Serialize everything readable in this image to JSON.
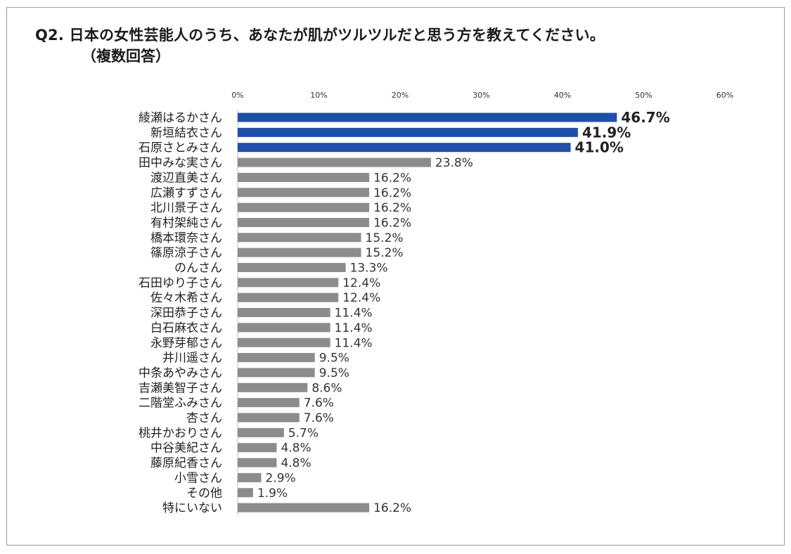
{
  "chart_data": {
    "type": "bar",
    "orientation": "horizontal",
    "title": "Q2. 日本の女性芸能人のうち、あなたが肌がツルツルだと思う方を教えてください。",
    "subtitle": "（複数回答）",
    "xlim": [
      0,
      60
    ],
    "x_ticks": [
      "0%",
      "10%",
      "20%",
      "30%",
      "40%",
      "50%",
      "60%"
    ],
    "grid": false,
    "highlight_color": "#1f4fa8",
    "bar_color": "#8c8c8c",
    "highlight_count": 3,
    "categories": [
      "綾瀬はるかさん",
      "新垣結衣さん",
      "石原さとみさん",
      "田中みな実さん",
      "渡辺直美さん",
      "広瀬すずさん",
      "北川景子さん",
      "有村架純さん",
      "橋本環奈さん",
      "篠原涼子さん",
      "のんさん",
      "石田ゆり子さん",
      "佐々木希さん",
      "深田恭子さん",
      "白石麻衣さん",
      "永野芽郁さん",
      "井川遥さん",
      "中条あやみさん",
      "吉瀬美智子さん",
      "二階堂ふみさん",
      "杏さん",
      "桃井かおりさん",
      "中谷美紀さん",
      "藤原紀香さん",
      "小雪さん",
      "その他",
      "特にいない"
    ],
    "values": [
      46.7,
      41.9,
      41.0,
      23.8,
      16.2,
      16.2,
      16.2,
      16.2,
      15.2,
      15.2,
      13.3,
      12.4,
      12.4,
      11.4,
      11.4,
      11.4,
      9.5,
      9.5,
      8.6,
      7.6,
      7.6,
      5.7,
      4.8,
      4.8,
      2.9,
      1.9,
      16.2
    ],
    "value_labels": [
      "46.7%",
      "41.9%",
      "41.0%",
      "23.8%",
      "16.2%",
      "16.2%",
      "16.2%",
      "16.2%",
      "15.2%",
      "15.2%",
      "13.3%",
      "12.4%",
      "12.4%",
      "11.4%",
      "11.4%",
      "11.4%",
      "9.5%",
      "9.5%",
      "8.6%",
      "7.6%",
      "7.6%",
      "5.7%",
      "4.8%",
      "4.8%",
      "2.9%",
      "1.9%",
      "16.2%"
    ]
  }
}
